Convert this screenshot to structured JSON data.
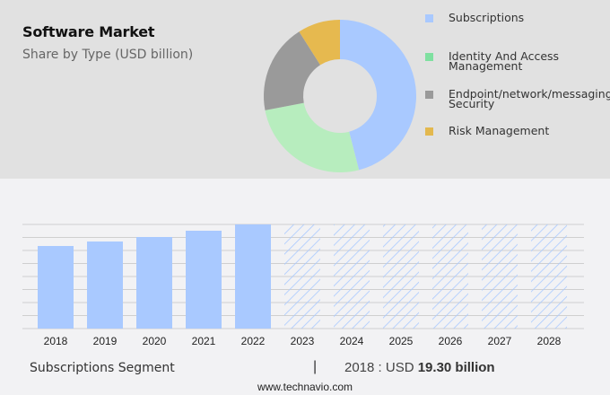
{
  "header": {
    "title": "Software Market",
    "subtitle": "Share by Type (USD billion)"
  },
  "legend": [
    {
      "label": "Subscriptions",
      "color": "#a9c9ff"
    },
    {
      "label": "Identity And Access\nManagement",
      "color": "#7fe0a0"
    },
    {
      "label": "Endpoint/network/messaging\nSecurity",
      "color": "#9a9a9a"
    },
    {
      "label": "Risk Management",
      "color": "#e3b84e"
    }
  ],
  "footer_info": {
    "segment": "Subscriptions Segment",
    "separator": "|",
    "value_prefix": "2018 : USD ",
    "value_bold": "19.30 billion",
    "website": "www.technavio.com"
  },
  "chart_data": [
    {
      "type": "pie",
      "title": "Software Market",
      "subtitle": "Share by Type (USD billion)",
      "donut": true,
      "categories": [
        "Subscriptions",
        "Identity And Access Management",
        "Endpoint/network/messaging Security",
        "Risk Management"
      ],
      "values": [
        46,
        26,
        19,
        9
      ],
      "colors": [
        "#a9c9ff",
        "#b7edbe",
        "#9a9a9a",
        "#e6b94f"
      ],
      "legend_position": "right"
    },
    {
      "type": "bar",
      "title": "Subscriptions Segment",
      "categories": [
        "2018",
        "2019",
        "2020",
        "2021",
        "2022",
        "2023",
        "2024",
        "2025",
        "2026",
        "2027",
        "2028"
      ],
      "values": [
        19.3,
        20.35,
        21.4,
        22.87,
        24.34,
        null,
        null,
        null,
        null,
        null,
        null
      ],
      "forecast": [
        false,
        false,
        false,
        false,
        false,
        true,
        true,
        true,
        true,
        true,
        true
      ],
      "annotation": "2018 : USD 19.30 billion",
      "xlabel": "",
      "ylabel": "",
      "grid": true,
      "color": "#a9c9ff"
    }
  ]
}
